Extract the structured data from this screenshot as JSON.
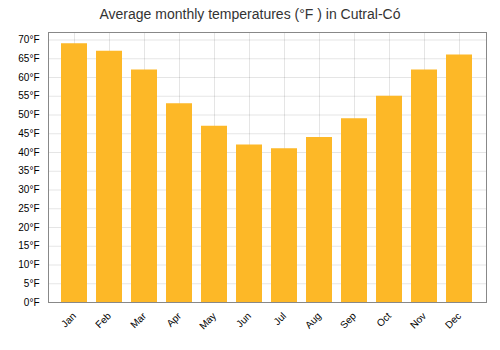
{
  "chart_data": {
    "type": "bar",
    "title": "Average monthly temperatures (°F ) in Cutral-Có",
    "categories": [
      "Jan",
      "Feb",
      "Mar",
      "Apr",
      "May",
      "Jun",
      "Jul",
      "Aug",
      "Sep",
      "Oct",
      "Nov",
      "Dec"
    ],
    "values": [
      69,
      67,
      62,
      53,
      47,
      42,
      41,
      44,
      49,
      55,
      62,
      66
    ],
    "color": "#FDB827",
    "ylim": [
      0,
      72
    ],
    "yticks": [
      {
        "value": 0,
        "label": "0°F"
      },
      {
        "value": 5,
        "label": "5°F"
      },
      {
        "value": 10,
        "label": "10°F"
      },
      {
        "value": 15,
        "label": "15°F"
      },
      {
        "value": 20,
        "label": "20°F"
      },
      {
        "value": 25,
        "label": "25°F"
      },
      {
        "value": 30,
        "label": "30°F"
      },
      {
        "value": 35,
        "label": "35°F"
      },
      {
        "value": 40,
        "label": "40°F"
      },
      {
        "value": 45,
        "label": "45°F"
      },
      {
        "value": 50,
        "label": "50°F"
      },
      {
        "value": 55,
        "label": "55°F"
      },
      {
        "value": 60,
        "label": "60°F"
      },
      {
        "value": 65,
        "label": "65°F"
      },
      {
        "value": 70,
        "label": "70°F"
      }
    ],
    "grid": true
  }
}
